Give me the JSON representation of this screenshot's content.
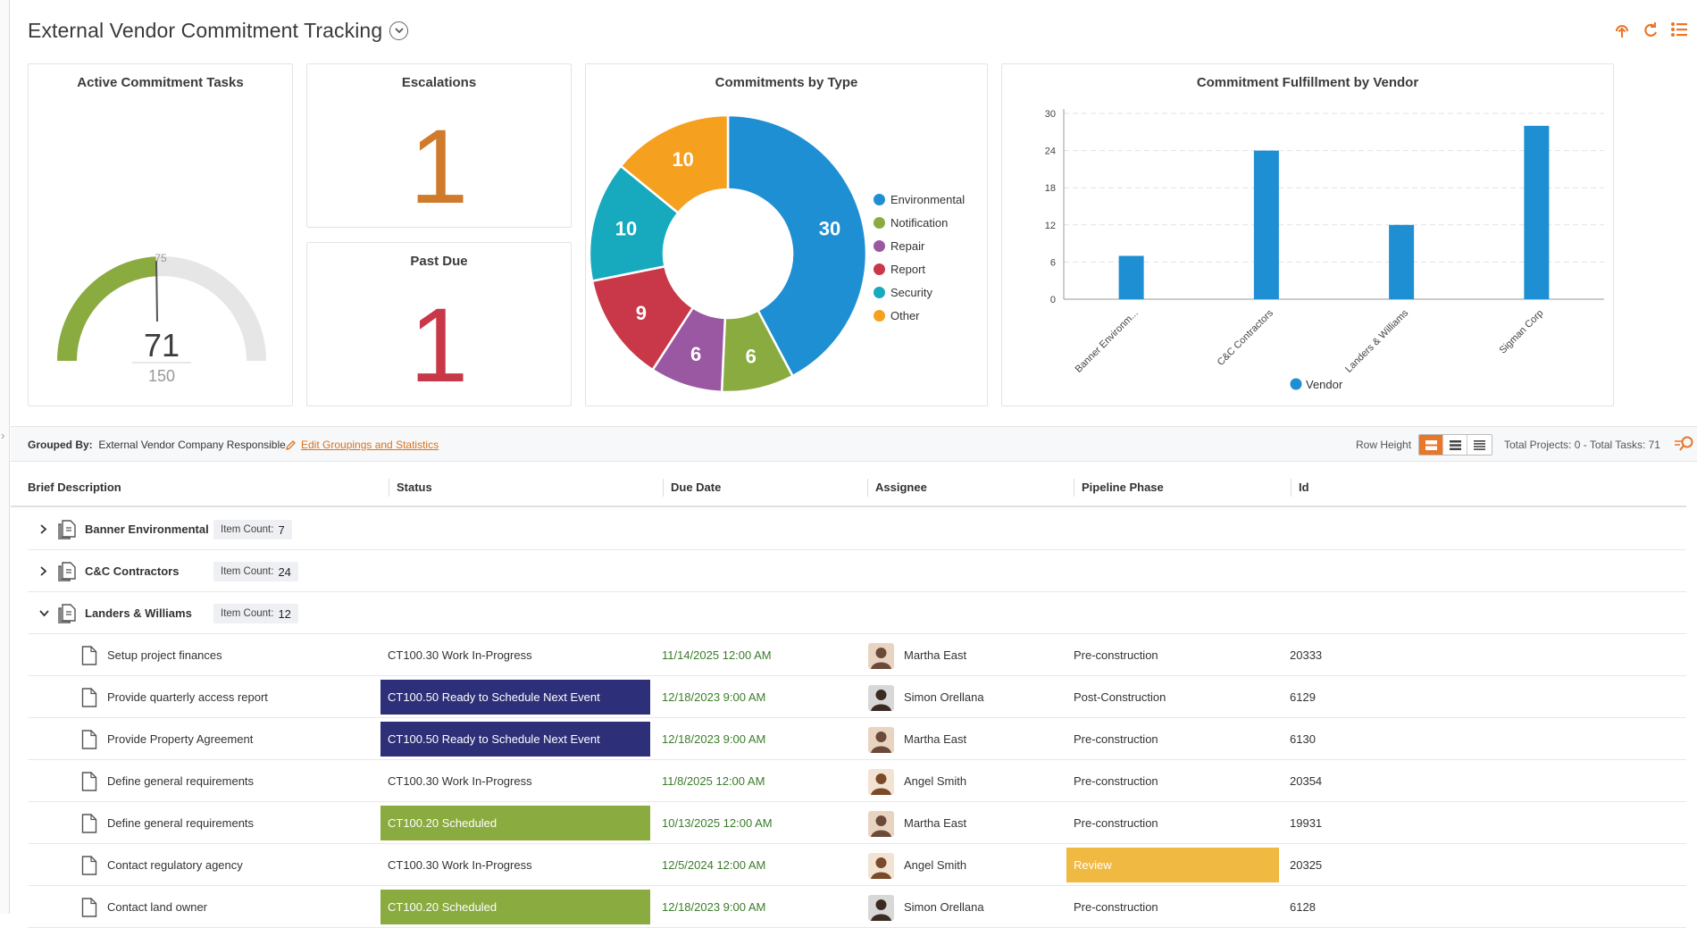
{
  "header": {
    "title": "External Vendor Commitment Tracking"
  },
  "colors": {
    "accent": "#e8772a",
    "navy": "#2d2f78",
    "green": "#8aab3f",
    "yellow": "#f0b942",
    "blue": "#1f8fd3"
  },
  "gauge": {
    "title": "Active Commitment Tasks",
    "value": "71",
    "max": "150",
    "marker": "75"
  },
  "escalations": {
    "title": "Escalations",
    "value": "1"
  },
  "past_due": {
    "title": "Past Due",
    "value": "1"
  },
  "donut": {
    "title": "Commitments by Type",
    "slices": [
      {
        "name": "Environmental",
        "value": 30,
        "label": "30",
        "color": "#1f8fd3"
      },
      {
        "name": "Notification",
        "value": 6,
        "label": "6",
        "color": "#8aab3f"
      },
      {
        "name": "Repair",
        "value": 6,
        "label": "6",
        "color": "#9a58a2"
      },
      {
        "name": "Report",
        "value": 9,
        "label": "9",
        "color": "#c83848"
      },
      {
        "name": "Security",
        "value": 10,
        "label": "10",
        "color": "#17a9bd"
      },
      {
        "name": "Other",
        "value": 10,
        "label": "10",
        "color": "#f6a01f"
      }
    ]
  },
  "chart_data": {
    "type": "bar",
    "title": "Commitment Fulfillment by Vendor",
    "categories": [
      "Banner Environm...",
      "C&C Contractors",
      "Landers & Williams",
      "Sigman Corp"
    ],
    "series": [
      {
        "name": "Vendor",
        "values": [
          7,
          24,
          12,
          28
        ],
        "color": "#1f8fd3"
      }
    ],
    "yticks": [
      "0",
      "6",
      "12",
      "18",
      "24",
      "30"
    ],
    "ylim": [
      0,
      30
    ],
    "grid": true,
    "legend": "bottom"
  },
  "toolbar": {
    "grouped_by_label": "Grouped By:",
    "grouped_by_value": "External Vendor Company Responsible",
    "edit_link": "Edit Groupings and Statistics",
    "row_height_label": "Row Height",
    "totals": "Total Projects: 0 - Total Tasks: 71"
  },
  "columns": {
    "brief": "Brief Description",
    "status": "Status",
    "due": "Due Date",
    "assignee": "Assignee",
    "phase": "Pipeline Phase",
    "id": "Id"
  },
  "item_count_label": "Item Count:",
  "groups": [
    {
      "name": "Banner Environmental",
      "count": "7"
    },
    {
      "name": "C&C Contractors",
      "count": "24"
    },
    {
      "name": "Landers & Williams",
      "count": "12"
    }
  ],
  "rows": [
    {
      "brief": "Setup project finances",
      "status": "CT100.30 Work In-Progress",
      "due": "11/14/2025  12:00 AM",
      "assignee": "Martha East",
      "phase": "Pre-construction",
      "id": "20333"
    },
    {
      "brief": "Provide quarterly access report",
      "status": "CT100.50 Ready to Schedule Next Event",
      "due": "12/18/2023  9:00 AM",
      "assignee": "Simon Orellana",
      "phase": "Post-Construction",
      "id": "6129"
    },
    {
      "brief": "Provide Property Agreement",
      "status": "CT100.50 Ready to Schedule Next Event",
      "due": "12/18/2023  9:00 AM",
      "assignee": "Martha East",
      "phase": "Pre-construction",
      "id": "6130"
    },
    {
      "brief": "Define general requirements",
      "status": "CT100.30 Work In-Progress",
      "due": "11/8/2025  12:00 AM",
      "assignee": "Angel Smith",
      "phase": "Pre-construction",
      "id": "20354"
    },
    {
      "brief": "Define general requirements",
      "status": "CT100.20 Scheduled",
      "due": "10/13/2025  12:00 AM",
      "assignee": "Martha East",
      "phase": "Pre-construction",
      "id": "19931"
    },
    {
      "brief": "Contact regulatory agency",
      "status": "CT100.30 Work In-Progress",
      "due": "12/5/2024  12:00 AM",
      "assignee": "Angel Smith",
      "phase": "Review",
      "id": "20325"
    },
    {
      "brief": "Contact land owner",
      "status": "CT100.20 Scheduled",
      "due": "12/18/2023  9:00 AM",
      "assignee": "Simon Orellana",
      "phase": "Pre-construction",
      "id": "6128"
    }
  ]
}
